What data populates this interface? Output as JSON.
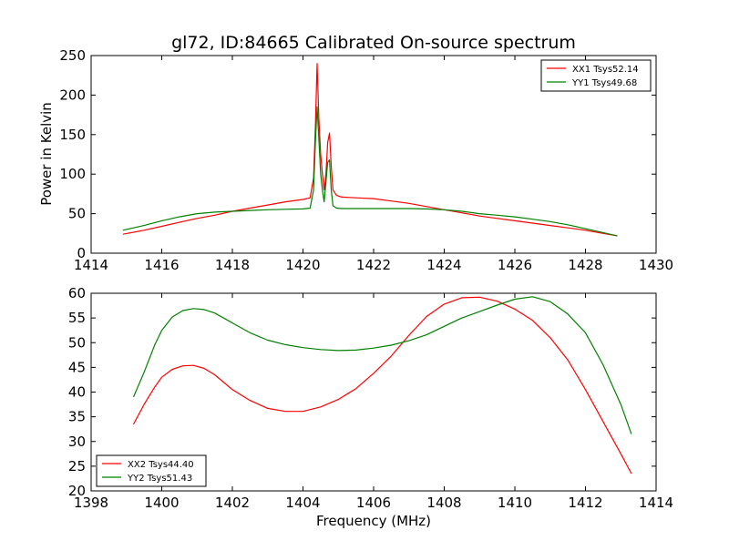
{
  "chart_data": [
    {
      "type": "line",
      "title": "gl72, ID:84665 Calibrated On-source spectrum",
      "xlabel": "",
      "ylabel": "Power in Kelvin",
      "xlim": [
        1414,
        1430
      ],
      "ylim": [
        0,
        250
      ],
      "xticks": [
        1414,
        1416,
        1418,
        1420,
        1422,
        1424,
        1426,
        1428,
        1430
      ],
      "yticks": [
        0,
        50,
        100,
        150,
        200,
        250
      ],
      "grid": false,
      "legend_position": "top-right",
      "series": [
        {
          "name": "XX1 Tsys52.14",
          "color": "#ff0000",
          "x": [
            1414.9,
            1415.5,
            1416.0,
            1416.5,
            1417.0,
            1417.5,
            1418.0,
            1418.5,
            1419.0,
            1419.5,
            1420.0,
            1420.2,
            1420.3,
            1420.35,
            1420.4,
            1420.45,
            1420.5,
            1420.55,
            1420.6,
            1420.65,
            1420.7,
            1420.75,
            1420.8,
            1420.85,
            1420.95,
            1421.1,
            1421.5,
            1422.0,
            1422.5,
            1423.0,
            1423.5,
            1424.0,
            1424.5,
            1425.0,
            1425.5,
            1426.0,
            1426.5,
            1427.0,
            1427.5,
            1428.0,
            1428.5,
            1428.9
          ],
          "values": [
            24,
            29,
            34,
            39,
            44,
            48,
            53,
            57,
            61,
            65,
            68,
            70,
            95,
            160,
            240,
            170,
            125,
            100,
            80,
            100,
            140,
            152,
            110,
            80,
            73,
            71,
            70,
            69,
            66,
            63,
            59,
            55,
            51,
            47,
            44,
            41,
            38,
            35,
            32,
            29,
            25,
            22
          ]
        },
        {
          "name": "YY1 Tsys49.68",
          "color": "#008000",
          "x": [
            1414.9,
            1415.5,
            1416.0,
            1416.5,
            1417.0,
            1417.5,
            1418.0,
            1418.5,
            1419.0,
            1419.5,
            1420.0,
            1420.2,
            1420.3,
            1420.35,
            1420.4,
            1420.45,
            1420.5,
            1420.55,
            1420.6,
            1420.65,
            1420.7,
            1420.75,
            1420.8,
            1420.85,
            1420.95,
            1421.1,
            1421.5,
            1422.0,
            1422.5,
            1423.0,
            1423.5,
            1424.0,
            1424.5,
            1425.0,
            1425.5,
            1426.0,
            1426.5,
            1427.0,
            1427.5,
            1428.0,
            1428.5,
            1428.9
          ],
          "values": [
            29,
            35,
            41,
            46,
            50,
            52,
            53,
            54,
            55,
            55.5,
            56,
            57,
            80,
            140,
            185,
            145,
            100,
            80,
            65,
            90,
            115,
            118,
            80,
            60,
            57,
            56.5,
            56.5,
            56.5,
            56.5,
            56.5,
            56,
            55,
            53,
            50,
            48,
            46,
            43,
            40,
            36,
            31,
            26,
            22
          ]
        }
      ]
    },
    {
      "type": "line",
      "title": "",
      "xlabel": "Frequency (MHz)",
      "ylabel": "",
      "xlim": [
        1398,
        1414
      ],
      "ylim": [
        20,
        60
      ],
      "xticks": [
        1398,
        1400,
        1402,
        1404,
        1406,
        1408,
        1410,
        1412,
        1414
      ],
      "yticks": [
        20,
        25,
        30,
        35,
        40,
        45,
        50,
        55,
        60
      ],
      "grid": false,
      "legend_position": "bottom-left",
      "series": [
        {
          "name": "XX2 Tsys44.40",
          "color": "#ff0000",
          "x": [
            1399.2,
            1399.5,
            1399.8,
            1400.0,
            1400.3,
            1400.6,
            1400.9,
            1401.2,
            1401.5,
            1402.0,
            1402.5,
            1403.0,
            1403.5,
            1404.0,
            1404.5,
            1405.0,
            1405.5,
            1406.0,
            1406.5,
            1407.0,
            1407.5,
            1408.0,
            1408.5,
            1409.0,
            1409.5,
            1410.0,
            1410.5,
            1411.0,
            1411.5,
            1412.0,
            1412.5,
            1413.0,
            1413.3
          ],
          "values": [
            33.5,
            37.5,
            41,
            43,
            44.6,
            45.3,
            45.4,
            44.8,
            43.5,
            40.5,
            38.3,
            36.7,
            36.1,
            36.1,
            37,
            38.5,
            40.7,
            43.8,
            47.3,
            51.5,
            55.3,
            57.8,
            59.1,
            59.2,
            58.4,
            56.8,
            54.5,
            51,
            46.5,
            40.5,
            34,
            27.5,
            23.5
          ]
        },
        {
          "name": "YY2 Tsys51.43",
          "color": "#008000",
          "x": [
            1399.2,
            1399.5,
            1399.8,
            1400.0,
            1400.3,
            1400.6,
            1400.9,
            1401.2,
            1401.5,
            1402.0,
            1402.5,
            1403.0,
            1403.5,
            1404.0,
            1404.5,
            1405.0,
            1405.5,
            1406.0,
            1406.5,
            1407.0,
            1407.5,
            1408.0,
            1408.5,
            1409.0,
            1409.5,
            1410.0,
            1410.5,
            1411.0,
            1411.5,
            1412.0,
            1412.5,
            1413.0,
            1413.3
          ],
          "values": [
            39,
            44,
            49.5,
            52.5,
            55.2,
            56.5,
            56.9,
            56.7,
            56,
            54,
            52,
            50.5,
            49.6,
            49,
            48.6,
            48.4,
            48.5,
            48.9,
            49.5,
            50.4,
            51.6,
            53.3,
            55,
            56.3,
            57.6,
            58.8,
            59.3,
            58.3,
            55.8,
            52,
            45.5,
            37.5,
            31.5
          ]
        }
      ]
    }
  ]
}
